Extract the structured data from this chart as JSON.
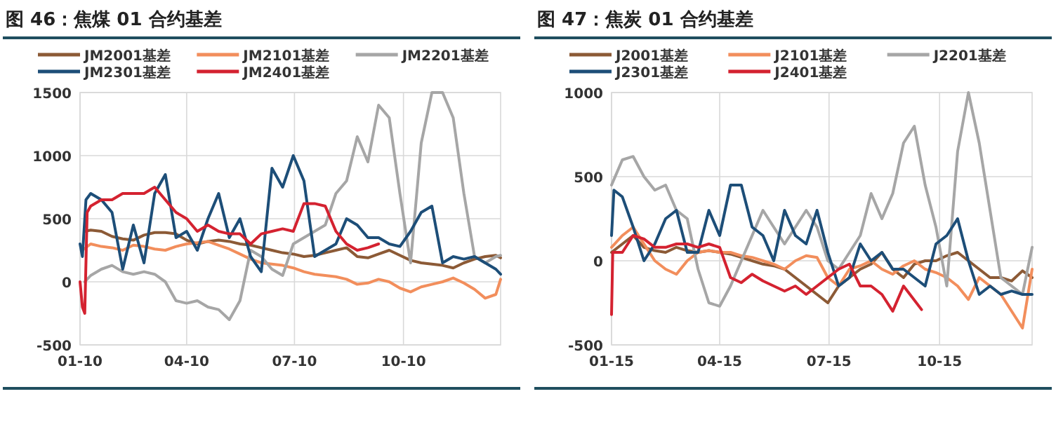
{
  "chart_data": [
    {
      "type": "line",
      "title": "图 46：焦煤 01 合约基差",
      "xlim": [
        "--01-10",
        "--12-31"
      ],
      "xticks": [
        {
          "value": "--01-10",
          "label": "01-10"
        },
        {
          "value": "--04-10",
          "label": "04-10"
        },
        {
          "value": "--07-10",
          "label": "07-10"
        },
        {
          "value": "--10-10",
          "label": "10-10"
        }
      ],
      "ylim": [
        -500,
        1500
      ],
      "yticks": [
        -500,
        0,
        500,
        1000,
        1500
      ],
      "grid": true,
      "legend": "top",
      "series": [
        {
          "name": "JM2001基差",
          "color": "#8c5a36",
          "x": [
            "--01-14",
            "--01-19",
            "--01-28",
            "--02-06",
            "--02-15",
            "--02-24",
            "--03-05",
            "--03-14",
            "--03-23",
            "--04-01",
            "--04-10",
            "--04-19",
            "--04-28",
            "--05-07",
            "--05-16",
            "--05-25",
            "--06-03",
            "--06-12",
            "--06-21",
            "--06-30",
            "--07-09",
            "--07-18",
            "--07-27",
            "--08-05",
            "--08-14",
            "--08-23",
            "--09-01",
            "--09-10",
            "--09-19",
            "--09-28",
            "--10-07",
            "--10-16",
            "--10-25",
            "--11-03",
            "--11-12",
            "--11-21",
            "--11-30",
            "--12-09",
            "--12-18",
            "--12-27",
            "--12-31"
          ],
          "values": [
            400,
            410,
            400,
            360,
            340,
            330,
            370,
            390,
            390,
            380,
            330,
            300,
            320,
            330,
            320,
            300,
            290,
            270,
            250,
            230,
            220,
            200,
            210,
            230,
            250,
            270,
            200,
            190,
            220,
            250,
            210,
            170,
            150,
            140,
            130,
            110,
            150,
            180,
            200,
            210,
            190
          ]
        },
        {
          "name": "JM2101基差",
          "color": "#f28e5c",
          "x": [
            "--01-12",
            "--01-19",
            "--01-28",
            "--02-06",
            "--02-15",
            "--02-24",
            "--03-05",
            "--03-14",
            "--03-23",
            "--04-01",
            "--04-10",
            "--04-19",
            "--04-28",
            "--05-07",
            "--05-16",
            "--05-25",
            "--06-03",
            "--06-12",
            "--06-21",
            "--06-30",
            "--07-09",
            "--07-18",
            "--07-27",
            "--08-05",
            "--08-14",
            "--08-23",
            "--09-01",
            "--09-10",
            "--09-19",
            "--09-28",
            "--10-07",
            "--10-16",
            "--10-25",
            "--11-03",
            "--11-12",
            "--11-21",
            "--11-30",
            "--12-09",
            "--12-18",
            "--12-27",
            "--12-31"
          ],
          "values": [
            250,
            300,
            280,
            270,
            250,
            290,
            280,
            260,
            250,
            280,
            300,
            310,
            320,
            290,
            260,
            220,
            180,
            150,
            140,
            130,
            110,
            80,
            60,
            50,
            40,
            20,
            -20,
            -10,
            20,
            0,
            -50,
            -80,
            -40,
            -20,
            0,
            30,
            -10,
            -60,
            -130,
            -100,
            20
          ]
        },
        {
          "name": "JM2201基差",
          "color": "#a6a6a6",
          "x": [
            "--01-14",
            "--01-19",
            "--01-28",
            "--02-06",
            "--02-15",
            "--02-24",
            "--03-05",
            "--03-14",
            "--03-23",
            "--04-01",
            "--04-10",
            "--04-19",
            "--04-28",
            "--05-07",
            "--05-16",
            "--05-25",
            "--06-03",
            "--06-12",
            "--06-21",
            "--06-30",
            "--07-09",
            "--07-18",
            "--07-27",
            "--08-05",
            "--08-14",
            "--08-23",
            "--09-01",
            "--09-10",
            "--09-19",
            "--09-28",
            "--10-07",
            "--10-16",
            "--10-25",
            "--11-03",
            "--11-12",
            "--11-21",
            "--11-30",
            "--12-09",
            "--12-18",
            "--12-27",
            "--12-31"
          ],
          "values": [
            0,
            50,
            100,
            130,
            80,
            60,
            80,
            60,
            0,
            -150,
            -170,
            -150,
            -200,
            -220,
            -300,
            -150,
            250,
            200,
            100,
            50,
            300,
            350,
            400,
            450,
            700,
            800,
            1150,
            950,
            1400,
            1300,
            700,
            150,
            1100,
            1500,
            1500,
            1300,
            700,
            200,
            150,
            200,
            210
          ]
        },
        {
          "name": "JM2301基差",
          "color": "#1d4e78",
          "x": [
            "--01-10",
            "--01-12",
            "--01-15",
            "--01-19",
            "--01-28",
            "--02-06",
            "--02-15",
            "--02-24",
            "--03-05",
            "--03-14",
            "--03-23",
            "--04-01",
            "--04-10",
            "--04-19",
            "--04-28",
            "--05-07",
            "--05-16",
            "--05-25",
            "--06-03",
            "--06-12",
            "--06-21",
            "--06-30",
            "--07-09",
            "--07-18",
            "--07-27",
            "--08-05",
            "--08-14",
            "--08-23",
            "--09-01",
            "--09-10",
            "--09-19",
            "--09-28",
            "--10-07",
            "--10-16",
            "--10-25",
            "--11-03",
            "--11-12",
            "--11-21",
            "--11-30",
            "--12-09",
            "--12-18",
            "--12-27",
            "--12-31"
          ],
          "values": [
            300,
            200,
            650,
            700,
            650,
            550,
            100,
            450,
            150,
            700,
            850,
            350,
            400,
            250,
            500,
            700,
            350,
            500,
            200,
            80,
            900,
            750,
            1000,
            800,
            200,
            250,
            300,
            500,
            450,
            350,
            350,
            300,
            280,
            400,
            550,
            600,
            150,
            200,
            180,
            200,
            150,
            100,
            60
          ]
        },
        {
          "name": "JM2401基差",
          "color": "#d42230",
          "x": [
            "--01-10",
            "--01-12",
            "--01-14",
            "--01-16",
            "--01-19",
            "--01-28",
            "--02-06",
            "--02-15",
            "--02-24",
            "--03-05",
            "--03-14",
            "--03-23",
            "--04-01",
            "--04-10",
            "--04-19",
            "--04-28",
            "--05-07",
            "--05-16",
            "--05-25",
            "--06-03",
            "--06-12",
            "--06-21",
            "--06-30",
            "--07-09",
            "--07-18",
            "--07-27",
            "--08-05",
            "--08-14",
            "--08-23",
            "--09-01",
            "--09-10",
            "--09-19"
          ],
          "values": [
            0,
            -200,
            -250,
            550,
            600,
            650,
            650,
            700,
            700,
            700,
            750,
            650,
            550,
            500,
            400,
            450,
            400,
            380,
            380,
            300,
            380,
            400,
            420,
            400,
            620,
            620,
            600,
            400,
            300,
            250,
            270,
            300
          ]
        }
      ]
    },
    {
      "type": "line",
      "title": "图 47：焦炭 01 合约基差",
      "xlim": [
        "--01-15",
        "--12-31"
      ],
      "xticks": [
        {
          "value": "--01-15",
          "label": "01-15"
        },
        {
          "value": "--04-15",
          "label": "04-15"
        },
        {
          "value": "--07-15",
          "label": "07-15"
        },
        {
          "value": "--10-15",
          "label": "10-15"
        }
      ],
      "ylim": [
        -500,
        1000
      ],
      "yticks": [
        -500,
        0,
        500,
        1000
      ],
      "grid": true,
      "legend": "top",
      "series": [
        {
          "name": "J2001基差",
          "color": "#8c5a36",
          "x": [
            "--01-15",
            "--01-24",
            "--02-02",
            "--02-11",
            "--02-20",
            "--03-01",
            "--03-10",
            "--03-19",
            "--03-28",
            "--04-06",
            "--04-15",
            "--04-24",
            "--05-03",
            "--05-12",
            "--05-21",
            "--05-30",
            "--06-08",
            "--06-17",
            "--06-26",
            "--07-05",
            "--07-14",
            "--07-23",
            "--08-01",
            "--08-10",
            "--08-19",
            "--08-28",
            "--09-06",
            "--09-15",
            "--09-24",
            "--10-03",
            "--10-12",
            "--10-21",
            "--10-30",
            "--11-08",
            "--11-17",
            "--11-26",
            "--12-05",
            "--12-14",
            "--12-23",
            "--12-31"
          ],
          "values": [
            50,
            100,
            150,
            80,
            60,
            50,
            80,
            60,
            50,
            60,
            50,
            40,
            20,
            0,
            -20,
            -30,
            -50,
            -100,
            -150,
            -200,
            -250,
            -150,
            -100,
            -50,
            -20,
            50,
            -50,
            -100,
            -20,
            0,
            0,
            30,
            50,
            0,
            -50,
            -100,
            -100,
            -120,
            -60,
            -100
          ]
        },
        {
          "name": "J2101基差",
          "color": "#f28e5c",
          "x": [
            "--01-15",
            "--01-24",
            "--02-02",
            "--02-11",
            "--02-20",
            "--03-01",
            "--03-10",
            "--03-19",
            "--03-28",
            "--04-06",
            "--04-15",
            "--04-24",
            "--05-03",
            "--05-12",
            "--05-21",
            "--05-30",
            "--06-08",
            "--06-17",
            "--06-26",
            "--07-05",
            "--07-14",
            "--07-23",
            "--08-01",
            "--08-10",
            "--08-19",
            "--08-28",
            "--09-06",
            "--09-15",
            "--09-24",
            "--10-03",
            "--10-12",
            "--10-21",
            "--10-30",
            "--11-08",
            "--11-17",
            "--11-26",
            "--12-05",
            "--12-14",
            "--12-23",
            "--12-31"
          ],
          "values": [
            80,
            150,
            200,
            100,
            0,
            -50,
            -80,
            0,
            50,
            60,
            50,
            50,
            30,
            20,
            0,
            -20,
            -50,
            0,
            30,
            20,
            -100,
            -150,
            -50,
            -30,
            0,
            -50,
            -80,
            -30,
            0,
            -50,
            -70,
            -100,
            -150,
            -230,
            -100,
            -150,
            -200,
            -300,
            -400,
            -50
          ]
        },
        {
          "name": "J2201基差",
          "color": "#a6a6a6",
          "x": [
            "--01-15",
            "--01-24",
            "--02-02",
            "--02-11",
            "--02-20",
            "--03-01",
            "--03-10",
            "--03-19",
            "--03-28",
            "--04-06",
            "--04-15",
            "--04-24",
            "--05-03",
            "--05-12",
            "--05-21",
            "--05-30",
            "--06-08",
            "--06-17",
            "--06-26",
            "--07-05",
            "--07-14",
            "--07-23",
            "--08-01",
            "--08-10",
            "--08-19",
            "--08-28",
            "--09-06",
            "--09-15",
            "--09-24",
            "--10-03",
            "--10-12",
            "--10-21",
            "--10-30",
            "--11-08",
            "--11-17",
            "--11-26",
            "--12-05",
            "--12-14",
            "--12-23",
            "--12-31"
          ],
          "values": [
            450,
            600,
            620,
            500,
            420,
            450,
            300,
            250,
            -50,
            -250,
            -270,
            -150,
            0,
            150,
            300,
            200,
            100,
            200,
            300,
            200,
            0,
            -50,
            50,
            150,
            400,
            250,
            400,
            700,
            800,
            450,
            200,
            -150,
            650,
            1000,
            700,
            300,
            -100,
            -150,
            -200,
            80
          ]
        },
        {
          "name": "J2301基差",
          "color": "#1d4e78",
          "x": [
            "--01-15",
            "--01-17",
            "--01-24",
            "--02-02",
            "--02-11",
            "--02-20",
            "--03-01",
            "--03-10",
            "--03-19",
            "--03-28",
            "--04-06",
            "--04-15",
            "--04-24",
            "--05-03",
            "--05-12",
            "--05-21",
            "--05-30",
            "--06-08",
            "--06-17",
            "--06-26",
            "--07-05",
            "--07-14",
            "--07-23",
            "--08-01",
            "--08-10",
            "--08-19",
            "--08-28",
            "--09-06",
            "--09-15",
            "--09-24",
            "--10-03",
            "--10-12",
            "--10-21",
            "--10-30",
            "--11-08",
            "--11-17",
            "--11-26",
            "--12-05",
            "--12-14",
            "--12-23",
            "--12-31"
          ],
          "values": [
            150,
            420,
            380,
            200,
            0,
            100,
            250,
            300,
            50,
            50,
            300,
            150,
            450,
            450,
            200,
            150,
            0,
            300,
            150,
            100,
            300,
            50,
            -150,
            -100,
            100,
            0,
            50,
            -50,
            -50,
            -100,
            -150,
            100,
            150,
            250,
            0,
            -200,
            -150,
            -200,
            -180,
            -200,
            -200
          ]
        },
        {
          "name": "J2401基差",
          "color": "#d42230",
          "x": [
            "--01-15",
            "--01-16",
            "--01-24",
            "--02-02",
            "--02-11",
            "--02-20",
            "--03-01",
            "--03-10",
            "--03-19",
            "--03-28",
            "--04-06",
            "--04-15",
            "--04-24",
            "--05-03",
            "--05-12",
            "--05-21",
            "--05-30",
            "--06-08",
            "--06-17",
            "--06-26",
            "--07-05",
            "--07-14",
            "--07-23",
            "--08-01",
            "--08-10",
            "--08-19",
            "--08-28",
            "--09-06",
            "--09-15",
            "--09-30"
          ],
          "values": [
            -320,
            50,
            50,
            150,
            130,
            80,
            80,
            100,
            100,
            80,
            100,
            80,
            -100,
            -130,
            -80,
            -120,
            -150,
            -180,
            -150,
            -200,
            -150,
            -100,
            -50,
            -20,
            -150,
            -150,
            -200,
            -300,
            -150,
            -290
          ]
        }
      ]
    }
  ]
}
